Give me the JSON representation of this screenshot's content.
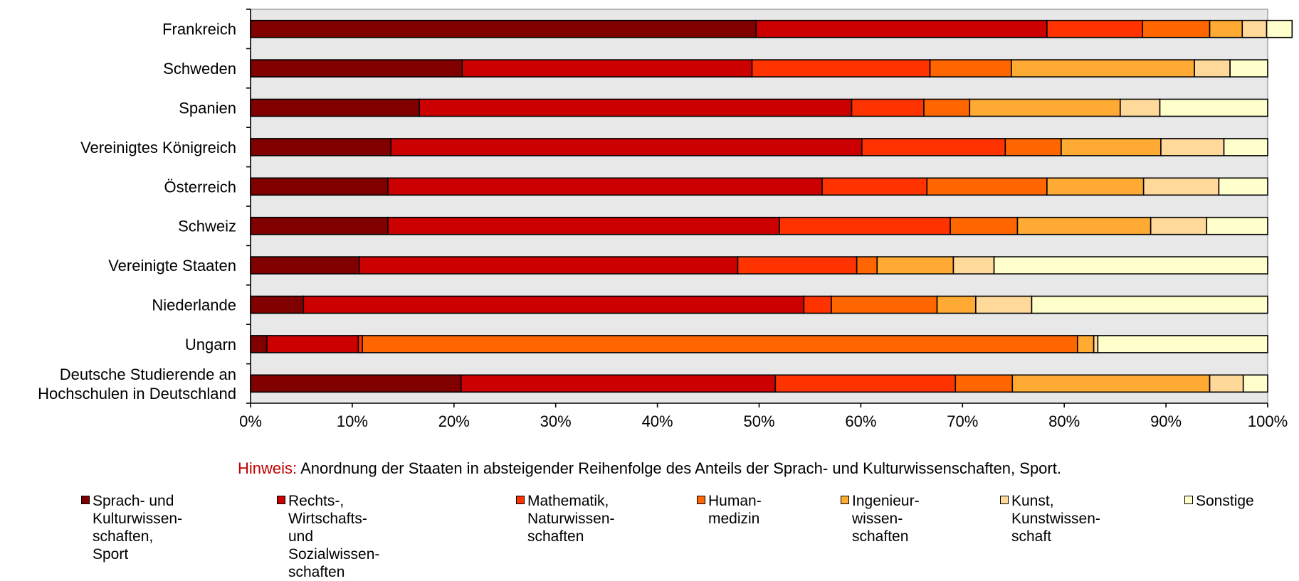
{
  "chart_data": {
    "type": "bar",
    "orientation": "horizontal",
    "stacked": "100%",
    "categories": [
      "Frankreich",
      "Schweden",
      "Spanien",
      "Vereinigtes Königreich",
      "Österreich",
      "Schweiz",
      "Vereinigte Staaten",
      "Niederlande",
      "Ungarn",
      "Deutsche Studierende an\nHochschulen in Deutschland"
    ],
    "series": [
      {
        "name": "Sprach- und\nKulturwissen-\nschaften, Sport",
        "color": "#800000",
        "values": [
          49.7,
          20.8,
          16.6,
          13.8,
          13.5,
          13.5,
          10.7,
          5.2,
          1.6,
          20.7
        ]
      },
      {
        "name": "Rechts-, Wirtschafts-\nund Sozialwissen-\nschaften",
        "color": "#cc0000",
        "values": [
          28.6,
          28.5,
          42.5,
          46.3,
          42.7,
          38.5,
          37.2,
          49.2,
          9.0,
          30.9
        ]
      },
      {
        "name": "Mathematik,\nNaturwissen-\nschaften",
        "color": "#ff3300",
        "values": [
          9.4,
          17.5,
          7.1,
          14.1,
          10.3,
          16.8,
          11.7,
          2.7,
          0.4,
          17.7
        ]
      },
      {
        "name": "Human-\nmedizin",
        "color": "#ff6600",
        "values": [
          6.6,
          8.0,
          4.5,
          5.5,
          11.8,
          6.6,
          2.0,
          10.4,
          70.3,
          5.6
        ]
      },
      {
        "name": "Ingenieur-\nwissen-\nschaften",
        "color": "#ffaa33",
        "values": [
          3.2,
          18.0,
          14.8,
          9.8,
          9.5,
          13.1,
          7.5,
          3.8,
          1.6,
          19.4
        ]
      },
      {
        "name": "Kunst,\nKunstwissen-\nschaft",
        "color": "#ffd99a",
        "values": [
          2.4,
          3.5,
          3.9,
          6.2,
          7.4,
          5.5,
          4.0,
          5.5,
          0.4,
          3.3
        ]
      },
      {
        "name": "Sonstige",
        "color": "#ffffcc",
        "values": [
          2.5,
          3.7,
          10.6,
          4.3,
          4.8,
          6.0,
          26.9,
          23.2,
          16.7,
          2.4
        ]
      }
    ],
    "xlim": [
      0,
      100
    ],
    "xticks": [
      "0%",
      "10%",
      "20%",
      "30%",
      "40%",
      "50%",
      "60%",
      "70%",
      "80%",
      "90%",
      "100%"
    ],
    "title": "",
    "xlabel": "",
    "ylabel": "",
    "legend_position": "bottom",
    "plot_background": "#e8e8e8",
    "grid": false
  },
  "note": {
    "label": "Hinweis:",
    "text": "Anordnung der Staaten in absteigender Reihenfolge des Anteils der Sprach- und Kulturwissenschaften, Sport."
  }
}
